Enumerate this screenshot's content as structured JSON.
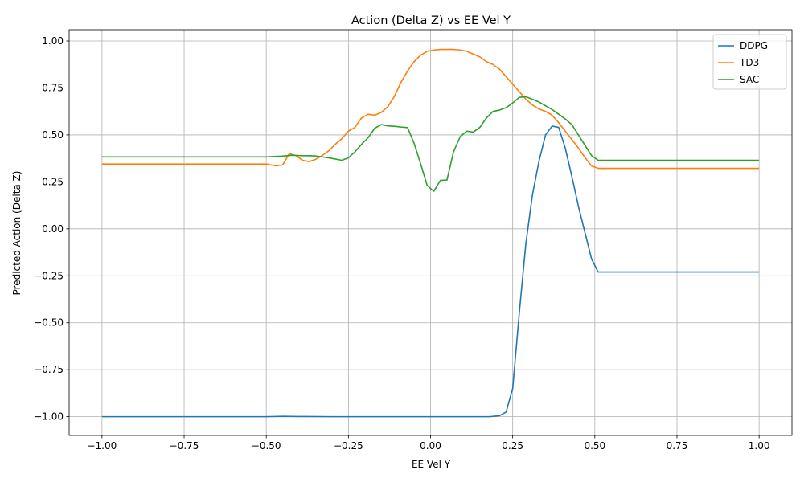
{
  "chart_data": {
    "type": "line",
    "title": "Action (Delta Z) vs EE Vel Y",
    "xlabel": "EE Vel Y",
    "ylabel": "Predicted Action (Delta Z)",
    "xlim": [
      -1.1,
      1.1
    ],
    "ylim": [
      -1.1,
      1.06
    ],
    "x_ticks": [
      -1.0,
      -0.75,
      -0.5,
      -0.25,
      0.0,
      0.25,
      0.5,
      0.75,
      1.0
    ],
    "x_tick_labels": [
      "−1.00",
      "−0.75",
      "−0.50",
      "−0.25",
      "0.00",
      "0.25",
      "0.50",
      "0.75",
      "1.00"
    ],
    "y_ticks": [
      -1.0,
      -0.75,
      -0.5,
      -0.25,
      0.0,
      0.25,
      0.5,
      0.75,
      1.0
    ],
    "y_tick_labels": [
      "−1.00",
      "−0.75",
      "−0.50",
      "−0.25",
      "0.00",
      "0.25",
      "0.50",
      "0.75",
      "1.00"
    ],
    "grid": true,
    "legend_position": "top-right",
    "series": [
      {
        "name": "DDPG",
        "color": "#1f77b4",
        "points": [
          [
            -1.0,
            -1.0
          ],
          [
            -0.5,
            -1.0
          ],
          [
            -0.45,
            -0.998
          ],
          [
            -0.4,
            -0.999
          ],
          [
            -0.3,
            -1.0
          ],
          [
            0.0,
            -1.0
          ],
          [
            0.1,
            -1.0
          ],
          [
            0.18,
            -1.0
          ],
          [
            0.21,
            -0.995
          ],
          [
            0.23,
            -0.975
          ],
          [
            0.25,
            -0.85
          ],
          [
            0.27,
            -0.45
          ],
          [
            0.29,
            -0.08
          ],
          [
            0.31,
            0.18
          ],
          [
            0.33,
            0.36
          ],
          [
            0.35,
            0.5
          ],
          [
            0.37,
            0.547
          ],
          [
            0.39,
            0.54
          ],
          [
            0.41,
            0.43
          ],
          [
            0.43,
            0.28
          ],
          [
            0.45,
            0.12
          ],
          [
            0.47,
            -0.02
          ],
          [
            0.49,
            -0.16
          ],
          [
            0.51,
            -0.23
          ],
          [
            0.6,
            -0.23
          ],
          [
            1.0,
            -0.23
          ]
        ]
      },
      {
        "name": "TD3",
        "color": "#ff7f0e",
        "points": [
          [
            -1.0,
            0.345
          ],
          [
            -0.5,
            0.345
          ],
          [
            -0.47,
            0.335
          ],
          [
            -0.45,
            0.34
          ],
          [
            -0.43,
            0.4
          ],
          [
            -0.41,
            0.39
          ],
          [
            -0.39,
            0.365
          ],
          [
            -0.37,
            0.358
          ],
          [
            -0.35,
            0.37
          ],
          [
            -0.33,
            0.39
          ],
          [
            -0.31,
            0.415
          ],
          [
            -0.29,
            0.45
          ],
          [
            -0.27,
            0.48
          ],
          [
            -0.25,
            0.52
          ],
          [
            -0.23,
            0.54
          ],
          [
            -0.21,
            0.59
          ],
          [
            -0.19,
            0.61
          ],
          [
            -0.17,
            0.605
          ],
          [
            -0.15,
            0.62
          ],
          [
            -0.13,
            0.65
          ],
          [
            -0.11,
            0.705
          ],
          [
            -0.09,
            0.78
          ],
          [
            -0.07,
            0.84
          ],
          [
            -0.05,
            0.89
          ],
          [
            -0.03,
            0.925
          ],
          [
            -0.01,
            0.945
          ],
          [
            0.01,
            0.952
          ],
          [
            0.03,
            0.955
          ],
          [
            0.05,
            0.955
          ],
          [
            0.07,
            0.955
          ],
          [
            0.09,
            0.952
          ],
          [
            0.11,
            0.945
          ],
          [
            0.13,
            0.93
          ],
          [
            0.15,
            0.915
          ],
          [
            0.17,
            0.89
          ],
          [
            0.19,
            0.875
          ],
          [
            0.21,
            0.85
          ],
          [
            0.23,
            0.81
          ],
          [
            0.25,
            0.77
          ],
          [
            0.27,
            0.73
          ],
          [
            0.29,
            0.69
          ],
          [
            0.31,
            0.66
          ],
          [
            0.33,
            0.638
          ],
          [
            0.35,
            0.625
          ],
          [
            0.37,
            0.605
          ],
          [
            0.39,
            0.565
          ],
          [
            0.41,
            0.52
          ],
          [
            0.43,
            0.475
          ],
          [
            0.45,
            0.43
          ],
          [
            0.47,
            0.38
          ],
          [
            0.49,
            0.335
          ],
          [
            0.51,
            0.322
          ],
          [
            0.6,
            0.322
          ],
          [
            1.0,
            0.322
          ]
        ]
      },
      {
        "name": "SAC",
        "color": "#2ca02c",
        "points": [
          [
            -1.0,
            0.383
          ],
          [
            -0.5,
            0.383
          ],
          [
            -0.45,
            0.387
          ],
          [
            -0.42,
            0.392
          ],
          [
            -0.4,
            0.39
          ],
          [
            -0.35,
            0.388
          ],
          [
            -0.31,
            0.378
          ],
          [
            -0.27,
            0.365
          ],
          [
            -0.25,
            0.378
          ],
          [
            -0.23,
            0.41
          ],
          [
            -0.21,
            0.45
          ],
          [
            -0.19,
            0.485
          ],
          [
            -0.17,
            0.535
          ],
          [
            -0.15,
            0.555
          ],
          [
            -0.13,
            0.548
          ],
          [
            -0.11,
            0.546
          ],
          [
            -0.09,
            0.542
          ],
          [
            -0.07,
            0.539
          ],
          [
            -0.05,
            0.455
          ],
          [
            -0.03,
            0.345
          ],
          [
            -0.01,
            0.23
          ],
          [
            0.01,
            0.2
          ],
          [
            0.03,
            0.258
          ],
          [
            0.05,
            0.26
          ],
          [
            0.07,
            0.41
          ],
          [
            0.09,
            0.49
          ],
          [
            0.11,
            0.52
          ],
          [
            0.13,
            0.515
          ],
          [
            0.15,
            0.54
          ],
          [
            0.17,
            0.59
          ],
          [
            0.19,
            0.625
          ],
          [
            0.21,
            0.632
          ],
          [
            0.23,
            0.645
          ],
          [
            0.25,
            0.67
          ],
          [
            0.27,
            0.7
          ],
          [
            0.29,
            0.703
          ],
          [
            0.31,
            0.69
          ],
          [
            0.33,
            0.675
          ],
          [
            0.35,
            0.655
          ],
          [
            0.37,
            0.635
          ],
          [
            0.39,
            0.61
          ],
          [
            0.41,
            0.585
          ],
          [
            0.43,
            0.555
          ],
          [
            0.45,
            0.5
          ],
          [
            0.47,
            0.445
          ],
          [
            0.49,
            0.39
          ],
          [
            0.51,
            0.365
          ],
          [
            0.6,
            0.365
          ],
          [
            1.0,
            0.365
          ]
        ]
      }
    ]
  }
}
